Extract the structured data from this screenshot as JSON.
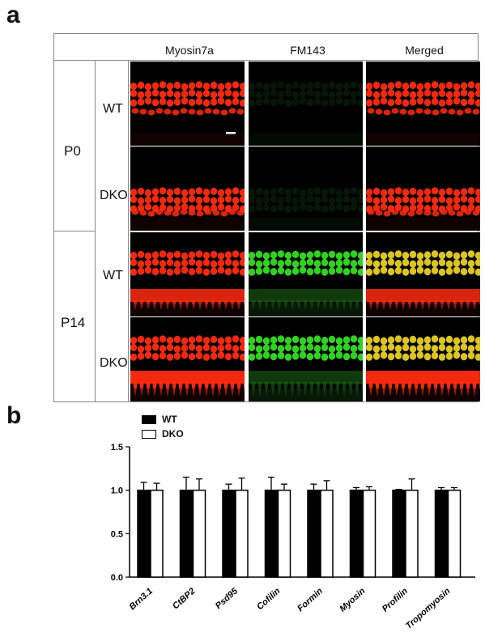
{
  "panel_a": {
    "letter": "a",
    "columns": [
      "Myosin7a",
      "FM143",
      "Merged"
    ],
    "groups": [
      {
        "label": "P0",
        "rows": [
          "WT",
          "DKO"
        ]
      },
      {
        "label": "P14",
        "rows": [
          "WT",
          "DKO"
        ]
      }
    ],
    "colors": {
      "red": "#ff2a10",
      "green": "#33dd22",
      "yellow": "#e8d020"
    }
  },
  "panel_b": {
    "letter": "b",
    "legend": [
      "WT",
      "DKO"
    ]
  },
  "chart_data": {
    "type": "bar",
    "categories": [
      "Brn3.1",
      "CtBP2",
      "Psd95",
      "Cofilin",
      "Formin",
      "Myosin",
      "Profilin",
      "Tropomyosin"
    ],
    "series": [
      {
        "name": "WT",
        "values": [
          1.0,
          1.0,
          1.0,
          1.0,
          1.0,
          1.0,
          1.0,
          1.0
        ],
        "errors": [
          0.09,
          0.15,
          0.07,
          0.15,
          0.07,
          0.03,
          0.01,
          0.03
        ],
        "color": "#000000"
      },
      {
        "name": "DKO",
        "values": [
          1.0,
          1.0,
          1.0,
          1.0,
          1.0,
          1.0,
          1.0,
          1.0
        ],
        "errors": [
          0.08,
          0.13,
          0.14,
          0.07,
          0.11,
          0.04,
          0.13,
          0.03
        ],
        "color": "#ffffff"
      }
    ],
    "ylim": [
      0,
      1.5
    ],
    "yticks": [
      "0.0",
      "0.5",
      "1.0",
      "1.5"
    ],
    "grid": false,
    "legend_position": "top-left"
  }
}
